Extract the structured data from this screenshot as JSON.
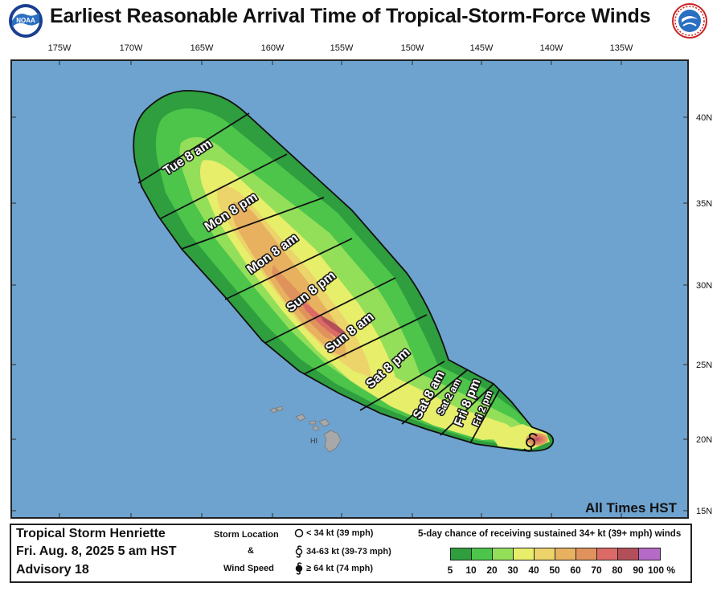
{
  "title": "Earliest Reasonable Arrival Time of Tropical-Storm-Force Winds",
  "logos": {
    "noaa": {
      "icon": "noaa-logo-icon",
      "text": "NOAA"
    },
    "nws": {
      "icon": "nws-logo-icon",
      "text": "NATIONAL WEATHER SERVICE"
    }
  },
  "map": {
    "longitude_labels": [
      "175W",
      "170W",
      "165W",
      "160W",
      "155W",
      "150W",
      "145W",
      "140W",
      "135W"
    ],
    "latitude_labels": [
      "40N",
      "35N",
      "30N",
      "25N",
      "20N",
      "15N"
    ],
    "island_label": "HI",
    "times_note": "All Times HST",
    "ocean_color": "#6ea3cf",
    "land_color": "#a8a8a8",
    "arrival_times": [
      "Tue  8 am",
      "Mon  8 pm",
      "Mon  8 am",
      "Sun  8 pm",
      "Sun  8 am",
      "Sat  8 pm",
      "Sat  8 am",
      "Sat  2 am",
      "Fri  8 pm",
      "Fri  2 pm"
    ]
  },
  "footer": {
    "storm_name": "Tropical Storm Henriette",
    "datetime": "Fri. Aug. 8, 2025  5 am HST",
    "advisory": "Advisory 18",
    "legend_heading_1": "Storm Location",
    "legend_heading_2": "&",
    "legend_heading_3": "Wind Speed",
    "legend_items": [
      {
        "icon": "circle-storm-icon",
        "label": "< 34 kt (39 mph)"
      },
      {
        "icon": "tropical-storm-icon",
        "label": "34-63 kt (39-73 mph)"
      },
      {
        "icon": "hurricane-icon",
        "label": "≥ 64 kt (74 mph)"
      }
    ],
    "probability_title": "5-day chance of receiving sustained 34+ kt (39+ mph) winds",
    "probability_ticks": [
      "5",
      "10",
      "20",
      "30",
      "40",
      "50",
      "60",
      "70",
      "80",
      "90",
      "100 %"
    ],
    "probability_colors": [
      "#2e9e3e",
      "#4cc54a",
      "#93df5a",
      "#e7ee6a",
      "#ecd36a",
      "#e7b160",
      "#e0925c",
      "#dc6a66",
      "#b24f58",
      "#b66ac8"
    ]
  }
}
